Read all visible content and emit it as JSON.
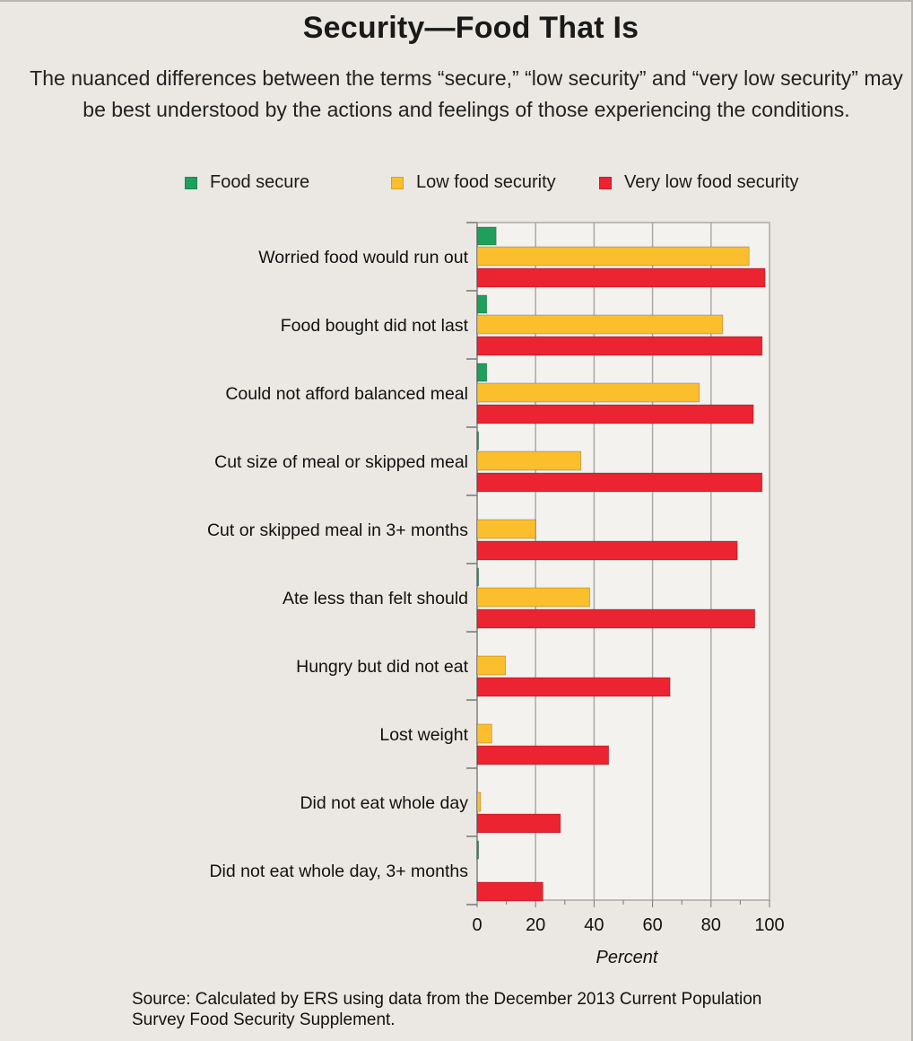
{
  "header": {
    "title": "Security—Food That Is",
    "subtitle": "The nuanced differences between the terms “secure,” “low security” and “very low security” may be best understood by the actions and feelings of those experiencing the conditions."
  },
  "legend": [
    {
      "label": "Food secure",
      "color": "#1fa05a"
    },
    {
      "label": "Low food security",
      "color": "#fbbf2e"
    },
    {
      "label": "Very low food security",
      "color": "#ec2330"
    }
  ],
  "chart_data": {
    "type": "bar",
    "orientation": "horizontal",
    "title": "Security—Food That Is",
    "xlabel": "Percent",
    "ylabel": "",
    "xlim": [
      0,
      100
    ],
    "xticks": [
      0,
      20,
      40,
      60,
      80,
      100
    ],
    "grid": true,
    "legend_position": "top",
    "categories": [
      "Worried food would run out",
      "Food bought did not last",
      "Could not afford balanced meal",
      "Cut size of meal or skipped meal",
      "Cut or skipped meal in 3+ months",
      "Ate less than felt should",
      "Hungry but did not eat",
      "Lost weight",
      "Did not eat whole day",
      "Did not eat whole day, 3+ months"
    ],
    "series": [
      {
        "name": "Food secure",
        "color": "#1fa05a",
        "values": [
          6.5,
          3.3,
          3.3,
          0.5,
          0,
          0.5,
          0,
          0,
          0,
          0.5
        ]
      },
      {
        "name": "Low food security",
        "color": "#fbbf2e",
        "values": [
          93,
          84,
          76,
          35.5,
          20,
          38.5,
          9.7,
          5,
          1.2,
          0
        ]
      },
      {
        "name": "Very low food security",
        "color": "#ec2330",
        "values": [
          98.5,
          97.5,
          94.5,
          97.5,
          89,
          95,
          66,
          45,
          28.5,
          22.5
        ]
      }
    ]
  },
  "footer": {
    "source": "Source: Calculated by ERS using data from the December 2013 Current Population Survey Food Security Supplement."
  }
}
